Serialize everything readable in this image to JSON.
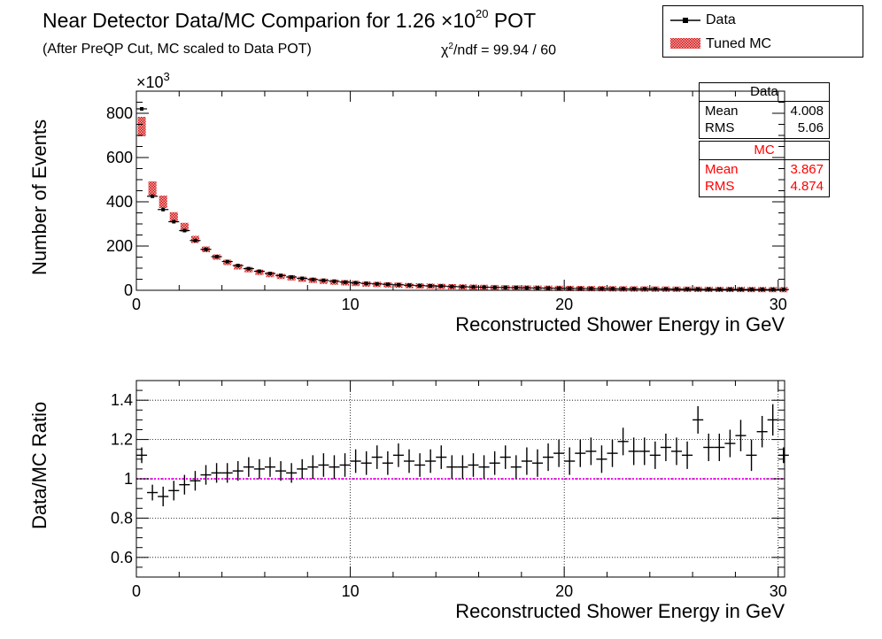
{
  "title": {
    "main": "Near Detector Data/MC Comparion for 1.26 ×10",
    "exp": "20",
    "suffix": " POT"
  },
  "subtitle": "(After PreQP Cut, MC scaled to Data POT)",
  "chi2": {
    "prefix": "χ",
    "exp": "2",
    "rest": "/ndf = 99.94 / 60"
  },
  "legend": {
    "data": "Data",
    "mc": "Tuned MC"
  },
  "stats": {
    "data": {
      "title": "Data",
      "mean_label": "Mean",
      "mean": "4.008",
      "rms_label": "RMS",
      "rms": "5.06"
    },
    "mc": {
      "title": "MC",
      "mean_label": "Mean",
      "mean": "3.867",
      "rms_label": "RMS",
      "rms": "4.874"
    }
  },
  "colors": {
    "mc": "#e83030",
    "ratio_line": "#ff00ff",
    "data": "#000000"
  },
  "chart_data": [
    {
      "type": "bar",
      "xlabel": "Reconstructed Shower Energy in GeV",
      "ylabel": "Number of Events",
      "multiplier": "×10",
      "multiplier_exp": "3",
      "xlim": [
        0,
        30.3
      ],
      "ylim": [
        0,
        900
      ],
      "xticks": [
        0,
        10,
        20,
        30
      ],
      "yticks": [
        0,
        200,
        400,
        600,
        800
      ],
      "bin_width": 0.5,
      "x": [
        0.25,
        0.75,
        1.25,
        1.75,
        2.25,
        2.75,
        3.25,
        3.75,
        4.25,
        4.75,
        5.25,
        5.75,
        6.25,
        6.75,
        7.25,
        7.75,
        8.25,
        8.75,
        9.25,
        9.75,
        10.25,
        10.75,
        11.25,
        11.75,
        12.25,
        12.75,
        13.25,
        13.75,
        14.25,
        14.75,
        15.25,
        15.75,
        16.25,
        16.75,
        17.25,
        17.75,
        18.25,
        18.75,
        19.25,
        19.75,
        20.25,
        20.75,
        21.25,
        21.75,
        22.25,
        22.75,
        23.25,
        23.75,
        24.25,
        24.75,
        25.25,
        25.75,
        26.25,
        26.75,
        27.25,
        27.75,
        28.25,
        28.75,
        29.25,
        29.75,
        30.25
      ],
      "series": [
        {
          "name": "Data",
          "values": [
            820,
            425,
            365,
            310,
            270,
            225,
            185,
            152,
            130,
            112,
            98,
            86,
            76,
            67,
            60,
            54,
            49,
            45,
            41,
            37,
            34,
            31,
            29,
            27,
            25,
            23,
            21,
            20,
            19,
            17,
            16,
            15,
            14,
            13,
            12.5,
            12,
            11,
            10.5,
            10,
            9.5,
            9,
            8.6,
            8.2,
            7.8,
            7.4,
            7,
            6.7,
            6.4,
            6.1,
            5.8,
            5.5,
            5.2,
            5,
            4.7,
            4.5,
            4.3,
            4.1,
            3.9,
            3.7,
            3.5,
            3.4
          ]
        },
        {
          "name": "Tuned MC",
          "values": [
            740,
            460,
            400,
            330,
            285,
            230,
            185,
            150,
            126,
            106,
            93,
            81,
            71,
            63,
            56,
            50,
            45,
            41,
            37,
            34,
            31,
            28.5,
            26.5,
            24.5,
            23,
            21,
            19.5,
            18.5,
            17.5,
            16,
            15,
            14,
            13,
            12.3,
            11.6,
            11,
            10.3,
            9.8,
            9.3,
            8.8,
            8.3,
            7.9,
            7.5,
            7.2,
            6.8,
            6.4,
            6.1,
            5.8,
            5.5,
            5.3,
            5,
            4.8,
            4.6,
            4.3,
            4.1,
            3.9,
            3.7,
            3.5,
            3.3,
            3.1,
            3
          ]
        }
      ]
    },
    {
      "type": "scatter",
      "xlabel": "Reconstructed Shower Energy in GeV",
      "ylabel": "Data/MC Ratio",
      "xlim": [
        0,
        30.3
      ],
      "ylim": [
        0.5,
        1.5
      ],
      "xticks": [
        0,
        10,
        20,
        30
      ],
      "yticks": [
        0.6,
        0.8,
        1,
        1.2,
        1.4
      ],
      "reference_line": 1,
      "x": [
        0.25,
        0.75,
        1.25,
        1.75,
        2.25,
        2.75,
        3.25,
        3.75,
        4.25,
        4.75,
        5.25,
        5.75,
        6.25,
        6.75,
        7.25,
        7.75,
        8.25,
        8.75,
        9.25,
        9.75,
        10.25,
        10.75,
        11.25,
        11.75,
        12.25,
        12.75,
        13.25,
        13.75,
        14.25,
        14.75,
        15.25,
        15.75,
        16.25,
        16.75,
        17.25,
        17.75,
        18.25,
        18.75,
        19.25,
        19.75,
        20.25,
        20.75,
        21.25,
        21.75,
        22.25,
        22.75,
        23.25,
        23.75,
        24.25,
        24.75,
        25.25,
        25.75,
        26.25,
        26.75,
        27.25,
        27.75,
        28.25,
        28.75,
        29.25,
        29.75,
        30.25
      ],
      "series": [
        {
          "name": "Data/MC",
          "values": [
            1.12,
            0.93,
            0.91,
            0.94,
            0.97,
            0.99,
            1.02,
            1.03,
            1.03,
            1.04,
            1.06,
            1.05,
            1.06,
            1.04,
            1.03,
            1.05,
            1.06,
            1.07,
            1.06,
            1.07,
            1.09,
            1.08,
            1.11,
            1.08,
            1.12,
            1.09,
            1.07,
            1.09,
            1.11,
            1.06,
            1.06,
            1.07,
            1.06,
            1.08,
            1.11,
            1.06,
            1.09,
            1.08,
            1.11,
            1.13,
            1.09,
            1.13,
            1.14,
            1.1,
            1.13,
            1.19,
            1.14,
            1.14,
            1.12,
            1.16,
            1.14,
            1.12,
            1.3,
            1.16,
            1.16,
            1.18,
            1.22,
            1.12,
            1.24,
            1.3,
            1.12
          ],
          "errors": [
            0.04,
            0.04,
            0.05,
            0.05,
            0.05,
            0.05,
            0.05,
            0.05,
            0.05,
            0.05,
            0.05,
            0.05,
            0.05,
            0.05,
            0.05,
            0.05,
            0.06,
            0.06,
            0.06,
            0.06,
            0.06,
            0.06,
            0.06,
            0.06,
            0.06,
            0.06,
            0.06,
            0.06,
            0.06,
            0.06,
            0.06,
            0.06,
            0.06,
            0.06,
            0.06,
            0.06,
            0.07,
            0.07,
            0.07,
            0.07,
            0.07,
            0.07,
            0.07,
            0.07,
            0.07,
            0.07,
            0.07,
            0.07,
            0.07,
            0.07,
            0.07,
            0.07,
            0.07,
            0.07,
            0.07,
            0.07,
            0.08,
            0.08,
            0.08,
            0.08,
            0.04
          ]
        }
      ]
    }
  ]
}
